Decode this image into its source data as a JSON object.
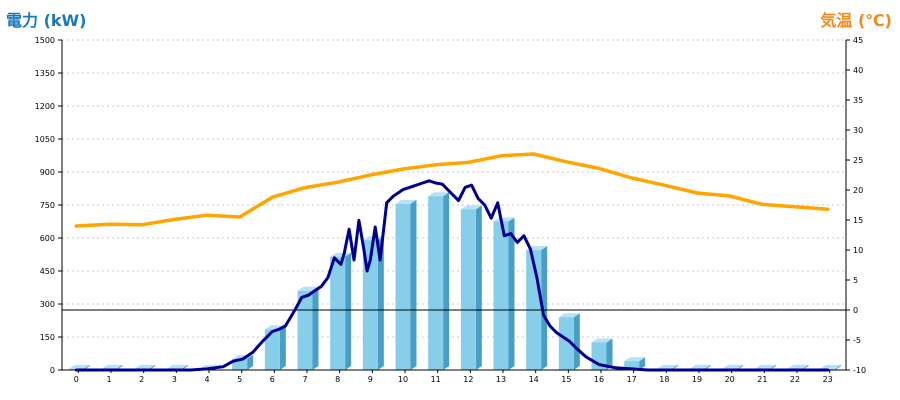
{
  "chart_data": {
    "type": "bar+line",
    "title": "",
    "xlabel": "",
    "ylabel": "電力 (kW)",
    "y2label": "気温 (℃)",
    "ylim": [
      0,
      1500
    ],
    "y2lim": [
      -10,
      45
    ],
    "grid": true,
    "categories": [
      "0",
      "1",
      "2",
      "3",
      "4",
      "5",
      "6",
      "7",
      "8",
      "9",
      "10",
      "11",
      "12",
      "13",
      "14",
      "15",
      "16",
      "17",
      "18",
      "19",
      "20",
      "21",
      "22",
      "23"
    ],
    "yticks": [
      0,
      150,
      300,
      450,
      600,
      750,
      900,
      1050,
      1200,
      1350,
      1500
    ],
    "y2ticks": [
      -10,
      -5,
      0,
      5,
      10,
      15,
      20,
      25,
      30,
      35,
      40,
      45
    ],
    "series": [
      {
        "kind": "bar",
        "axis": "left",
        "values": [
          5,
          5,
          5,
          5,
          5,
          50,
          185,
          360,
          515,
          590,
          755,
          790,
          730,
          675,
          545,
          240,
          125,
          40,
          5,
          5,
          5,
          5,
          5,
          5
        ],
        "color": "#87ceeb",
        "side_color": "#4a9ec4"
      },
      {
        "kind": "line",
        "axis": "left",
        "color": "#00008b",
        "x": [
          0,
          0.5,
          1,
          1.5,
          2,
          2.5,
          3,
          3.5,
          4,
          4.5,
          4.8,
          5.1,
          5.4,
          5.7,
          6,
          6.2,
          6.4,
          6.7,
          6.9,
          7.1,
          7.3,
          7.5,
          7.7,
          7.9,
          8.1,
          8.2,
          8.35,
          8.5,
          8.65,
          8.8,
          8.9,
          9.0,
          9.15,
          9.3,
          9.5,
          9.7,
          10,
          10.3,
          10.6,
          10.8,
          11.0,
          11.2,
          11.5,
          11.7,
          11.9,
          12.1,
          12.3,
          12.5,
          12.7,
          12.9,
          13.1,
          13.3,
          13.5,
          13.7,
          13.9,
          14.1,
          14.3,
          14.5,
          14.7,
          14.9,
          15.1,
          15.3,
          15.6,
          16.0,
          16.5,
          17.0,
          17.5,
          18.0,
          19,
          20,
          21,
          22,
          23
        ],
        "values": [
          0,
          0,
          0,
          0,
          0,
          0,
          0,
          0,
          5,
          15,
          40,
          50,
          80,
          130,
          175,
          185,
          200,
          275,
          330,
          340,
          360,
          380,
          420,
          510,
          480,
          530,
          640,
          500,
          680,
          550,
          450,
          500,
          650,
          500,
          760,
          790,
          820,
          835,
          850,
          860,
          850,
          845,
          800,
          770,
          830,
          840,
          780,
          750,
          690,
          760,
          610,
          620,
          580,
          610,
          550,
          420,
          250,
          200,
          170,
          150,
          130,
          100,
          60,
          25,
          10,
          5,
          0,
          0,
          0,
          0,
          0,
          0,
          0
        ]
      },
      {
        "kind": "line",
        "axis": "right",
        "color": "#ffa500",
        "x": [
          0,
          1,
          2,
          3,
          4,
          5,
          6,
          7,
          8,
          9,
          10,
          11,
          12,
          13,
          14,
          15,
          16,
          17,
          18,
          19,
          20,
          21,
          22,
          23
        ],
        "values": [
          14.0,
          14.3,
          14.2,
          15.1,
          15.8,
          15.5,
          18.8,
          20.4,
          21.3,
          22.5,
          23.5,
          24.2,
          24.6,
          25.7,
          26.0,
          24.7,
          23.6,
          22.0,
          20.8,
          19.5,
          19.0,
          17.6,
          17.2,
          16.8
        ]
      }
    ]
  }
}
